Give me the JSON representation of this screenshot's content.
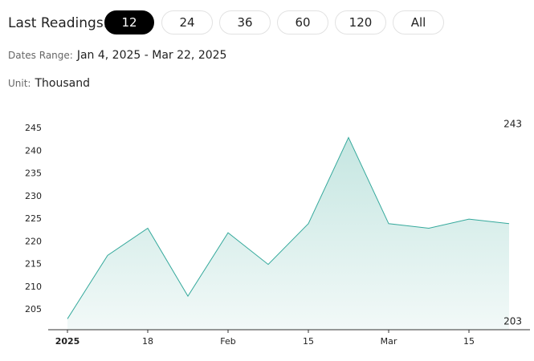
{
  "controls": {
    "label": "Last Readings:",
    "buttons": [
      "12",
      "24",
      "36",
      "60",
      "120",
      "All"
    ],
    "selected_index": 0,
    "dates_label": "Dates Range:",
    "dates": "Jan 4, 2025 - Mar 22, 2025",
    "unit_label": "Unit:",
    "unit": "Thousand"
  },
  "chart_data": {
    "type": "area",
    "categories": [
      "2025",
      null,
      "18",
      null,
      "Feb",
      null,
      "15",
      null,
      "Mar",
      null,
      "15",
      null
    ],
    "values": [
      203,
      217,
      223,
      208,
      222,
      215,
      224,
      243,
      224,
      223,
      225,
      224
    ],
    "color": "#35a99c",
    "ylim": [
      200.6,
      246.5
    ],
    "yticks": [
      205,
      210,
      215,
      220,
      225,
      230,
      235,
      240,
      245
    ],
    "max": 243,
    "min": 203,
    "grid": false
  }
}
